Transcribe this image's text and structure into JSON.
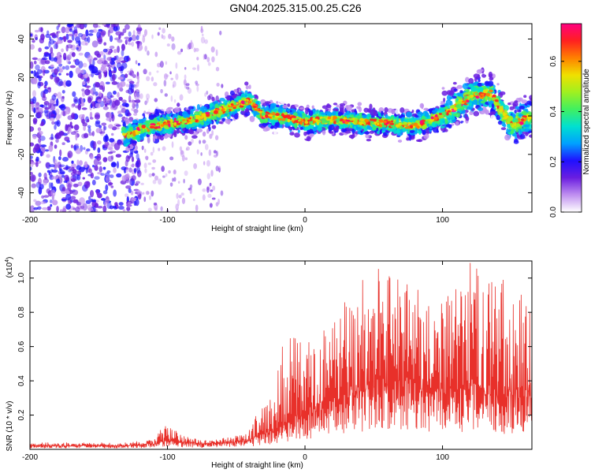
{
  "title": "GN04.2025.315.00.25.C26",
  "chart_data": [
    {
      "type": "heatmap",
      "xlabel": "Height of straight line (km)",
      "ylabel": "Frequency (Hz)",
      "xlim": [
        -200,
        165
      ],
      "ylim": [
        -50,
        48
      ],
      "xticks": [
        -200,
        -100,
        0,
        100
      ],
      "yticks": [
        -40,
        -20,
        0,
        20,
        40
      ],
      "colorbar": {
        "label": "Normalized spectral amplitude",
        "range": [
          0,
          0.75
        ],
        "ticks": [
          0.0,
          0.2,
          0.4,
          0.6
        ],
        "colors": [
          "#ffffff",
          "#c090f0",
          "#6a1ee0",
          "#2010ff",
          "#00a0ff",
          "#00e0d0",
          "#40f060",
          "#a0f020",
          "#f0e000",
          "#ff8000",
          "#ff2020",
          "#ff0080"
        ]
      },
      "ridge": [
        {
          "x": -130,
          "y": -10
        },
        {
          "x": -110,
          "y": -5
        },
        {
          "x": -80,
          "y": -2
        },
        {
          "x": -60,
          "y": 3
        },
        {
          "x": -40,
          "y": 8
        },
        {
          "x": -30,
          "y": 0
        },
        {
          "x": -20,
          "y": 0
        },
        {
          "x": 0,
          "y": -3
        },
        {
          "x": 20,
          "y": -2
        },
        {
          "x": 60,
          "y": -4
        },
        {
          "x": 80,
          "y": -5
        },
        {
          "x": 100,
          "y": 0
        },
        {
          "x": 120,
          "y": 10
        },
        {
          "x": 135,
          "y": 12
        },
        {
          "x": 150,
          "y": -5
        },
        {
          "x": 165,
          "y": 0
        }
      ]
    },
    {
      "type": "line",
      "xlabel": "Height of straight line (km)",
      "ylabel": "SNR (10 * v/v)",
      "yscale_label": "(x10",
      "yscale_exp": "4",
      "yscale_close": ")",
      "xlim": [
        -200,
        165
      ],
      "ylim": [
        0,
        1.1
      ],
      "xticks": [
        -200,
        -100,
        0,
        100
      ],
      "yticks": [
        0.2,
        0.4,
        0.6,
        0.8,
        1.0
      ],
      "color": "#e8302a",
      "envelope": [
        {
          "x": -200,
          "base": 0.02,
          "peak": 0.04
        },
        {
          "x": -130,
          "base": 0.02,
          "peak": 0.04
        },
        {
          "x": -110,
          "base": 0.03,
          "peak": 0.06
        },
        {
          "x": -100,
          "base": 0.05,
          "peak": 0.18
        },
        {
          "x": -90,
          "base": 0.04,
          "peak": 0.08
        },
        {
          "x": -70,
          "base": 0.03,
          "peak": 0.05
        },
        {
          "x": -50,
          "base": 0.04,
          "peak": 0.08
        },
        {
          "x": -40,
          "base": 0.05,
          "peak": 0.12
        },
        {
          "x": -30,
          "base": 0.08,
          "peak": 0.35
        },
        {
          "x": -20,
          "base": 0.1,
          "peak": 0.55
        },
        {
          "x": -10,
          "base": 0.15,
          "peak": 0.7
        },
        {
          "x": 0,
          "base": 0.2,
          "peak": 0.65
        },
        {
          "x": 20,
          "base": 0.25,
          "peak": 0.75
        },
        {
          "x": 30,
          "base": 0.3,
          "peak": 0.9
        },
        {
          "x": 50,
          "base": 0.35,
          "peak": 1.1
        },
        {
          "x": 80,
          "base": 0.35,
          "peak": 1.0
        },
        {
          "x": 100,
          "base": 0.3,
          "peak": 0.85
        },
        {
          "x": 120,
          "base": 0.35,
          "peak": 1.1
        },
        {
          "x": 140,
          "base": 0.3,
          "peak": 1.0
        },
        {
          "x": 165,
          "base": 0.3,
          "peak": 0.95
        }
      ]
    }
  ]
}
